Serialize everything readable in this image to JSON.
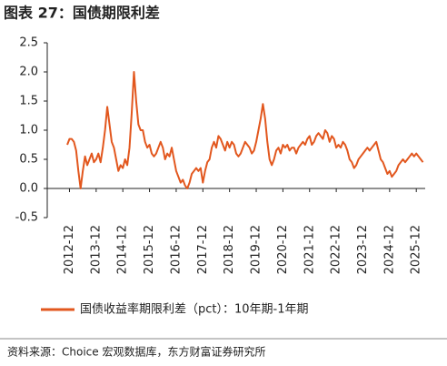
{
  "chart_data": {
    "type": "line",
    "title": "图表 27：国债期限利差",
    "source": "资料来源：Choice 宏观数据库，东方财富证券研究所",
    "x": [
      "2012-11",
      "2012-12",
      "2013-01",
      "2013-02",
      "2013-03",
      "2013-04",
      "2013-05",
      "2013-06",
      "2013-07",
      "2013-08",
      "2013-09",
      "2013-10",
      "2013-11",
      "2013-12",
      "2014-01",
      "2014-02",
      "2014-03",
      "2014-04",
      "2014-05",
      "2014-06",
      "2014-07",
      "2014-08",
      "2014-09",
      "2014-10",
      "2014-11",
      "2014-12",
      "2015-01",
      "2015-02",
      "2015-03",
      "2015-04",
      "2015-05",
      "2015-06",
      "2015-07",
      "2015-08",
      "2015-09",
      "2015-10",
      "2015-11",
      "2015-12",
      "2016-01",
      "2016-02",
      "2016-03",
      "2016-04",
      "2016-05",
      "2016-06",
      "2016-07",
      "2016-08",
      "2016-09",
      "2016-10",
      "2016-11",
      "2016-12",
      "2017-01",
      "2017-02",
      "2017-03",
      "2017-04",
      "2017-05",
      "2017-06",
      "2017-07",
      "2017-08",
      "2017-09",
      "2017-10",
      "2017-11",
      "2017-12",
      "2018-01",
      "2018-02",
      "2018-03",
      "2018-04",
      "2018-05",
      "2018-06",
      "2018-07",
      "2018-08",
      "2018-09",
      "2018-10",
      "2018-11",
      "2018-12",
      "2019-01",
      "2019-02",
      "2019-03",
      "2019-04",
      "2019-05",
      "2019-06",
      "2019-07",
      "2019-08",
      "2019-09",
      "2019-10",
      "2019-11",
      "2019-12",
      "2020-01",
      "2020-02",
      "2020-03",
      "2020-04",
      "2020-05",
      "2020-06",
      "2020-07",
      "2020-08",
      "2020-09",
      "2020-10",
      "2020-11",
      "2020-12",
      "2021-01",
      "2021-02",
      "2021-03",
      "2021-04",
      "2021-05",
      "2021-06",
      "2021-07",
      "2021-08",
      "2021-09",
      "2021-10",
      "2021-11",
      "2021-12",
      "2022-01",
      "2022-02",
      "2022-03",
      "2022-04",
      "2022-05",
      "2022-06",
      "2022-07",
      "2022-08",
      "2022-09",
      "2022-10",
      "2022-11",
      "2022-12",
      "2023-01",
      "2023-02",
      "2023-03",
      "2023-04",
      "2023-05",
      "2023-06",
      "2023-07",
      "2023-08",
      "2023-09",
      "2023-10",
      "2023-11",
      "2023-12",
      "2024-01",
      "2024-02",
      "2024-03",
      "2024-04",
      "2024-05",
      "2024-06",
      "2024-07",
      "2024-08",
      "2024-09",
      "2024-10",
      "2024-11",
      "2024-12",
      "2025-01",
      "2025-02",
      "2025-03",
      "2025-04",
      "2025-05",
      "2025-06",
      "2025-07",
      "2025-08",
      "2025-09",
      "2025-10",
      "2025-11",
      "2025-12",
      "2026-01",
      "2026-02",
      "2026-03"
    ],
    "series": [
      {
        "name": "国债收益率期限利差（pct）：10年期-1年期",
        "color": "#e2571e",
        "values": [
          0.75,
          0.85,
          0.85,
          0.8,
          0.65,
          0.3,
          0.0,
          0.3,
          0.55,
          0.4,
          0.5,
          0.6,
          0.45,
          0.5,
          0.6,
          0.45,
          0.7,
          1.0,
          1.4,
          1.1,
          0.8,
          0.7,
          0.5,
          0.3,
          0.4,
          0.35,
          0.5,
          0.4,
          0.7,
          1.3,
          2.0,
          1.5,
          1.1,
          1.0,
          1.0,
          0.8,
          0.7,
          0.75,
          0.6,
          0.55,
          0.6,
          0.7,
          0.8,
          0.7,
          0.5,
          0.6,
          0.55,
          0.7,
          0.5,
          0.3,
          0.2,
          0.1,
          0.15,
          0.05,
          0.0,
          0.1,
          0.25,
          0.3,
          0.35,
          0.3,
          0.35,
          0.1,
          0.3,
          0.45,
          0.5,
          0.7,
          0.8,
          0.7,
          0.9,
          0.85,
          0.75,
          0.65,
          0.8,
          0.7,
          0.8,
          0.75,
          0.6,
          0.55,
          0.6,
          0.7,
          0.8,
          0.75,
          0.7,
          0.6,
          0.65,
          0.8,
          1.0,
          1.2,
          1.45,
          1.2,
          0.8,
          0.5,
          0.4,
          0.5,
          0.65,
          0.7,
          0.6,
          0.75,
          0.7,
          0.75,
          0.65,
          0.7,
          0.7,
          0.6,
          0.7,
          0.75,
          0.8,
          0.75,
          0.85,
          0.9,
          0.75,
          0.8,
          0.9,
          0.95,
          0.9,
          0.85,
          1.0,
          0.95,
          0.8,
          0.9,
          0.85,
          0.7,
          0.75,
          0.7,
          0.8,
          0.75,
          0.65,
          0.5,
          0.45,
          0.35,
          0.4,
          0.5,
          0.55,
          0.6,
          0.65,
          0.7,
          0.65,
          0.7,
          0.75,
          0.8,
          0.65,
          0.5,
          0.45,
          0.35,
          0.25,
          0.3,
          0.2,
          0.25,
          0.3,
          0.4,
          0.45,
          0.5,
          0.45,
          0.5,
          0.55,
          0.6,
          0.55,
          0.6,
          0.55,
          0.5,
          0.45
        ]
      }
    ],
    "xlim": [
      "2012-02",
      "2026-04"
    ],
    "xticks": [
      "2012-12",
      "2013-12",
      "2014-12",
      "2015-12",
      "2016-12",
      "2017-12",
      "2018-12",
      "2019-12",
      "2020-12",
      "2021-12",
      "2022-12",
      "2023-12",
      "2024-12",
      "2025-12"
    ],
    "ylim": [
      -0.5,
      2.5
    ],
    "yticks": [
      -0.5,
      {
        "value": 0,
        "label": "0.0"
      },
      0.5,
      {
        "value": 1,
        "label": "1.0"
      },
      1.5,
      {
        "value": 2,
        "label": "2.0"
      },
      2.5
    ]
  }
}
